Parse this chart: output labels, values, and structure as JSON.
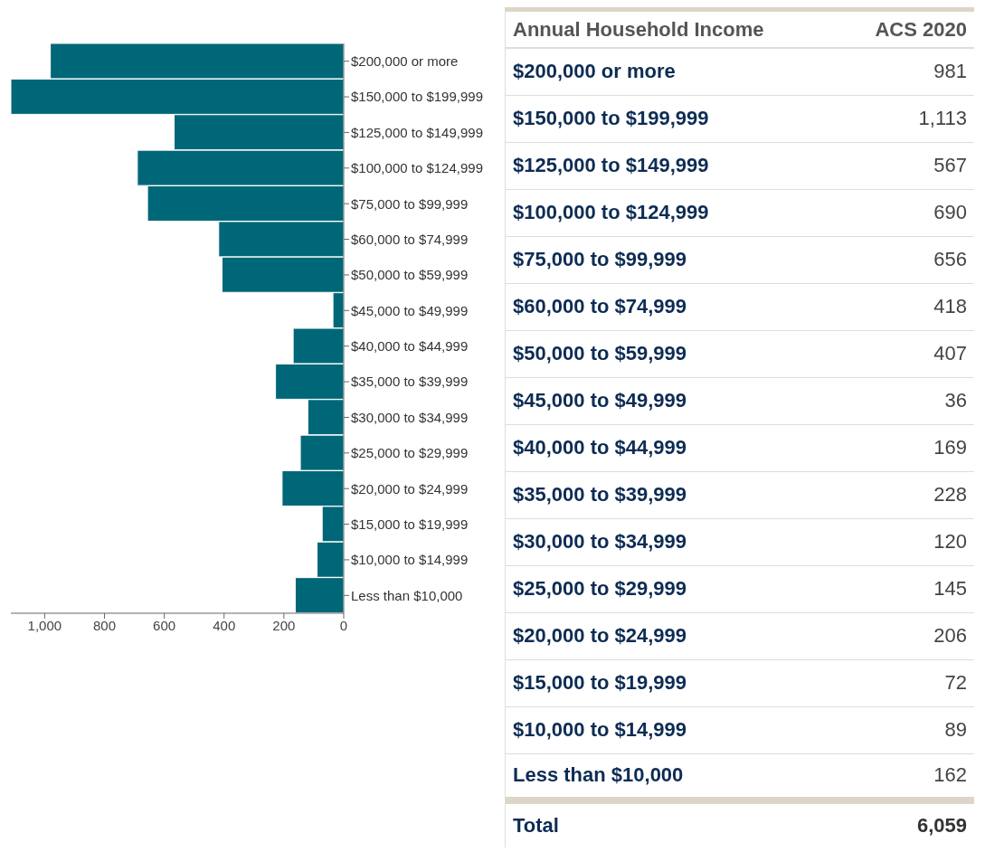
{
  "chart_data": [
    {
      "type": "bar",
      "orientation": "horizontal",
      "categories": [
        "$200,000 or more",
        "$150,000 to $199,999",
        "$125,000 to $149,999",
        "$100,000 to $124,999",
        "$75,000 to $99,999",
        "$60,000 to $74,999",
        "$50,000 to $59,999",
        "$45,000 to $49,999",
        "$40,000 to $44,999",
        "$35,000 to $39,999",
        "$30,000 to $34,999",
        "$25,000 to $29,999",
        "$20,000 to $24,999",
        "$15,000 to $19,999",
        "$10,000 to $14,999",
        "Less than $10,000"
      ],
      "series": [
        {
          "color": "#006778",
          "values": [
            981,
            1113,
            567,
            690,
            656,
            418,
            407,
            36,
            169,
            228,
            120,
            145,
            206,
            72,
            89,
            162
          ]
        }
      ],
      "xlim": [
        1113,
        0
      ],
      "xticks": [
        {
          "value": 1000,
          "label": "1,000"
        },
        800,
        600,
        400,
        200,
        0
      ],
      "grid": false,
      "legend": false
    },
    {
      "type": "other",
      "annotations": [
        "Annual Household Income",
        "ACS 2020",
        "$200,000 or more",
        "981",
        "$150,000 to $199,999",
        "1,113",
        "$125,000 to $149,999",
        "567",
        "$100,000 to $124,999",
        "690",
        "$75,000 to $99,999",
        "656",
        "$60,000 to $74,999",
        "418",
        "$50,000 to $59,999",
        "407",
        "$45,000 to $49,999",
        "36",
        "$40,000 to $44,999",
        "169",
        "$35,000 to $39,999",
        "228",
        "$30,000 to $34,999",
        "120",
        "$25,000 to $29,999",
        "145",
        "$20,000 to $24,999",
        "206",
        "$15,000 to $19,999",
        "72",
        "$10,000 to $14,999",
        "89",
        "Less than $10,000",
        "162",
        "Total",
        "6,059"
      ]
    }
  ]
}
